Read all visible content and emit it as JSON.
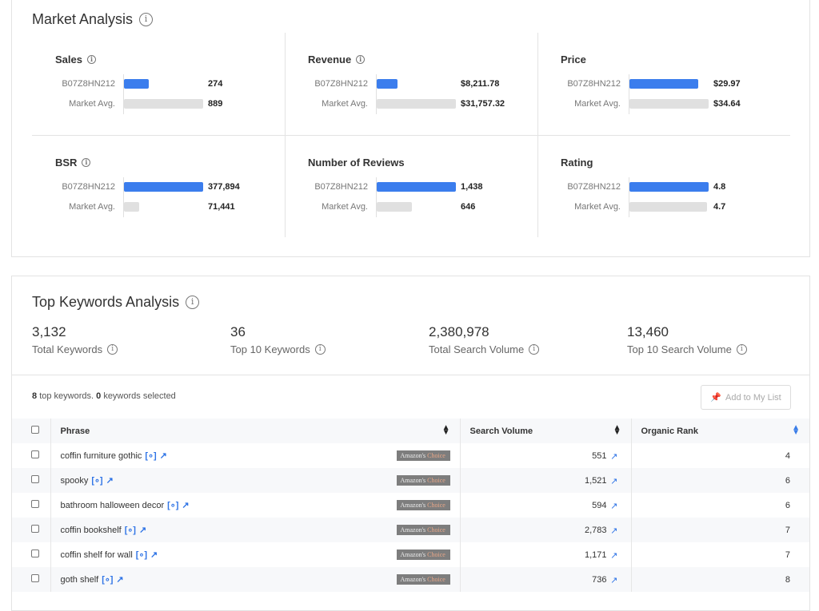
{
  "market": {
    "title": "Market Analysis",
    "product_label": "B07Z8HN212",
    "avg_label": "Market Avg.",
    "metrics": [
      {
        "name": "Sales",
        "info": true,
        "product": "274",
        "avg": "889",
        "pv": 274,
        "av": 889,
        "max": 889
      },
      {
        "name": "Revenue",
        "info": true,
        "product": "$8,211.78",
        "avg": "$31,757.32",
        "pv": 8211.78,
        "av": 31757.32,
        "max": 31757.32
      },
      {
        "name": "Price",
        "info": false,
        "product": "$29.97",
        "avg": "$34.64",
        "pv": 29.97,
        "av": 34.64,
        "max": 34.64
      },
      {
        "name": "BSR",
        "info": true,
        "product": "377,894",
        "avg": "71,441",
        "pv": 377894,
        "av": 71441,
        "max": 377894
      },
      {
        "name": "Number of Reviews",
        "info": false,
        "product": "1,438",
        "avg": "646",
        "pv": 1438,
        "av": 646,
        "max": 1438
      },
      {
        "name": "Rating",
        "info": false,
        "product": "4.8",
        "avg": "4.7",
        "pv": 4.8,
        "av": 4.7,
        "max": 4.8
      }
    ],
    "colors": {
      "product": "#3b7ded",
      "avg": "#e0e0e0"
    }
  },
  "keywords": {
    "title": "Top Keywords Analysis",
    "stats": [
      {
        "value": "3,132",
        "label": "Total Keywords"
      },
      {
        "value": "36",
        "label": "Top 10 Keywords"
      },
      {
        "value": "2,380,978",
        "label": "Total Search Volume"
      },
      {
        "value": "13,460",
        "label": "Top 10 Search Volume"
      }
    ],
    "count": "8",
    "count_text": "top keywords.",
    "selected": "0",
    "selected_text": "keywords selected",
    "add_button": "Add to My List",
    "columns": [
      "Phrase",
      "Search Volume",
      "Organic Rank"
    ],
    "badge_a": "Amazon's",
    "badge_b": "Choice",
    "rows": [
      {
        "phrase": "coffin furniture gothic",
        "volume": "551",
        "rank": "4"
      },
      {
        "phrase": "spooky",
        "volume": "1,521",
        "rank": "6"
      },
      {
        "phrase": "bathroom halloween decor",
        "volume": "594",
        "rank": "6"
      },
      {
        "phrase": "coffin bookshelf",
        "volume": "2,783",
        "rank": "7"
      },
      {
        "phrase": "coffin shelf for wall",
        "volume": "1,171",
        "rank": "7"
      },
      {
        "phrase": "goth shelf",
        "volume": "736",
        "rank": "8"
      }
    ]
  }
}
